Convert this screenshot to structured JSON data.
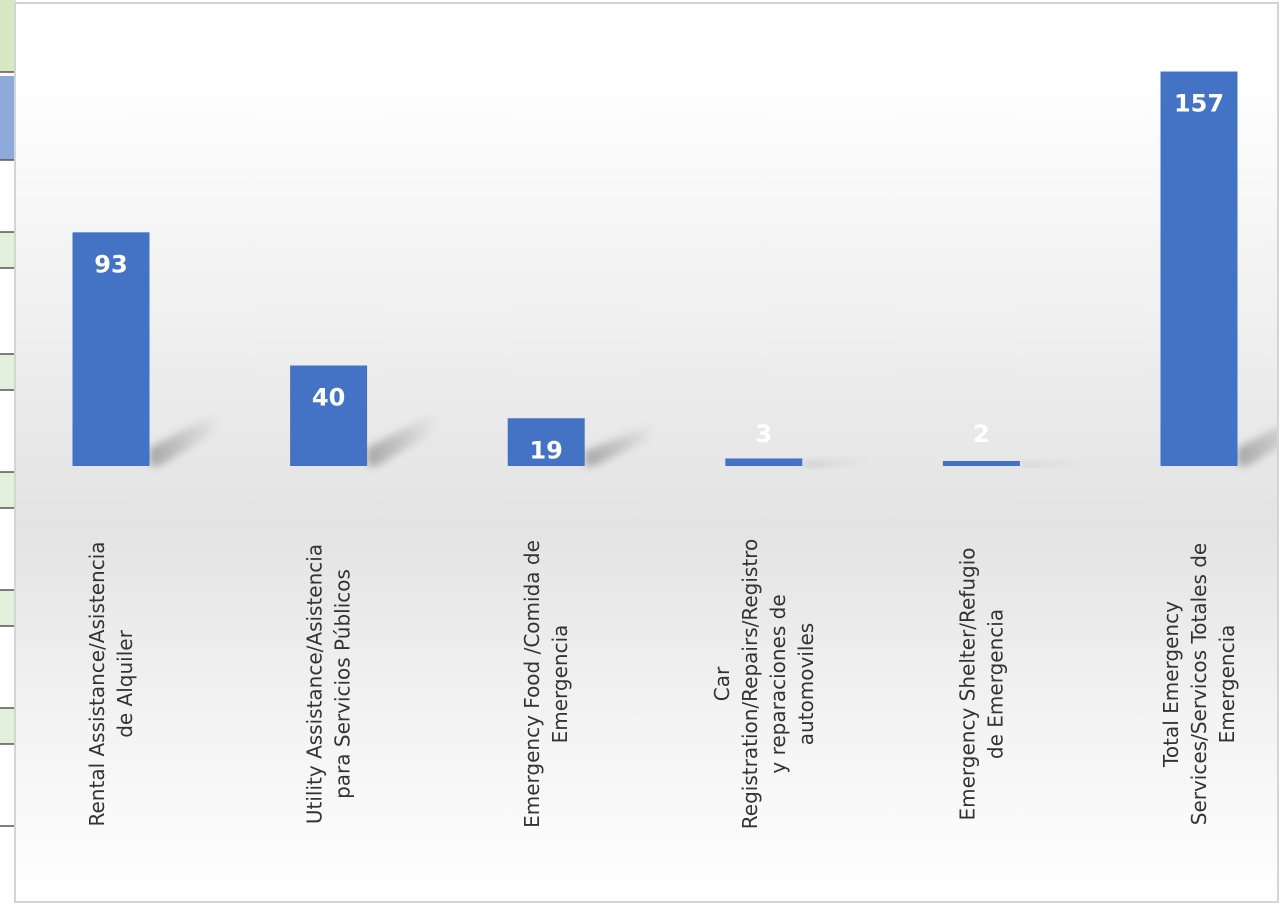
{
  "chart_data": {
    "type": "bar",
    "title": "",
    "xlabel": "",
    "ylabel": "",
    "ylim": [
      0,
      160
    ],
    "grid": false,
    "legend": "none",
    "categories": [
      [
        "Rental Assistance/Asistencia",
        "de Alquiler"
      ],
      [
        "Utility Assistance/Asistencia",
        "para Servicios Públicos"
      ],
      [
        "Emergency Food /Comida de",
        "Emergencia"
      ],
      [
        "Car",
        "Registration/Repairs/Registro",
        "y reparaciones de",
        "automoviles"
      ],
      [
        "Emergency Shelter/Refugio",
        "de Emergencia"
      ],
      [
        "Total Emergency",
        "Services/Servicos Totales de",
        "Emergencia"
      ]
    ],
    "values": [
      93,
      40,
      19,
      3,
      2,
      157
    ],
    "data_labels": [
      "93",
      "40",
      "19",
      "3",
      "2",
      "157"
    ],
    "bar_color": "#4472c4",
    "label_color_inside": "#ffffff"
  }
}
